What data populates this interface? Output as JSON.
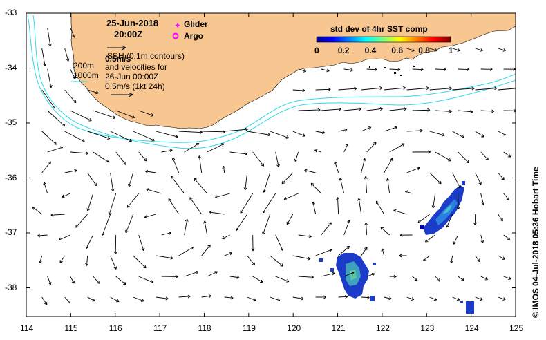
{
  "map": {
    "date": "25-Jun-2018",
    "time": "20:00Z",
    "legend_glider": "Glider",
    "legend_argo": "Argo",
    "scale_label": "0.5m/s",
    "ssh_note": "SSH (0.1m contours)",
    "vel_line1": "and velocities for",
    "vel_line2": "26-Jun 00:00Z",
    "vel_line3": "0.5m/s (1kt 24h)",
    "iso_200": "200m",
    "iso_1000": "1000m",
    "colorbar_title": "std dev of 4hr SST comp",
    "colorbar_ticks": [
      "0",
      "0.2",
      "0.4",
      "0.6",
      "0.8",
      "1"
    ],
    "credit": "© IMOS 04-Jul-2018 05:36 Hobart Time",
    "x_ticks": [
      "114",
      "115",
      "116",
      "117",
      "118",
      "119",
      "120",
      "121",
      "122",
      "123",
      "124",
      "125"
    ],
    "y_ticks": [
      "-33",
      "-34",
      "-35",
      "-36",
      "-37",
      "-38"
    ],
    "colors": {
      "land": "#f8c690",
      "isobath": "#30d8e8",
      "glider": "#ff00ff",
      "argo": "#ff00ff"
    }
  }
}
